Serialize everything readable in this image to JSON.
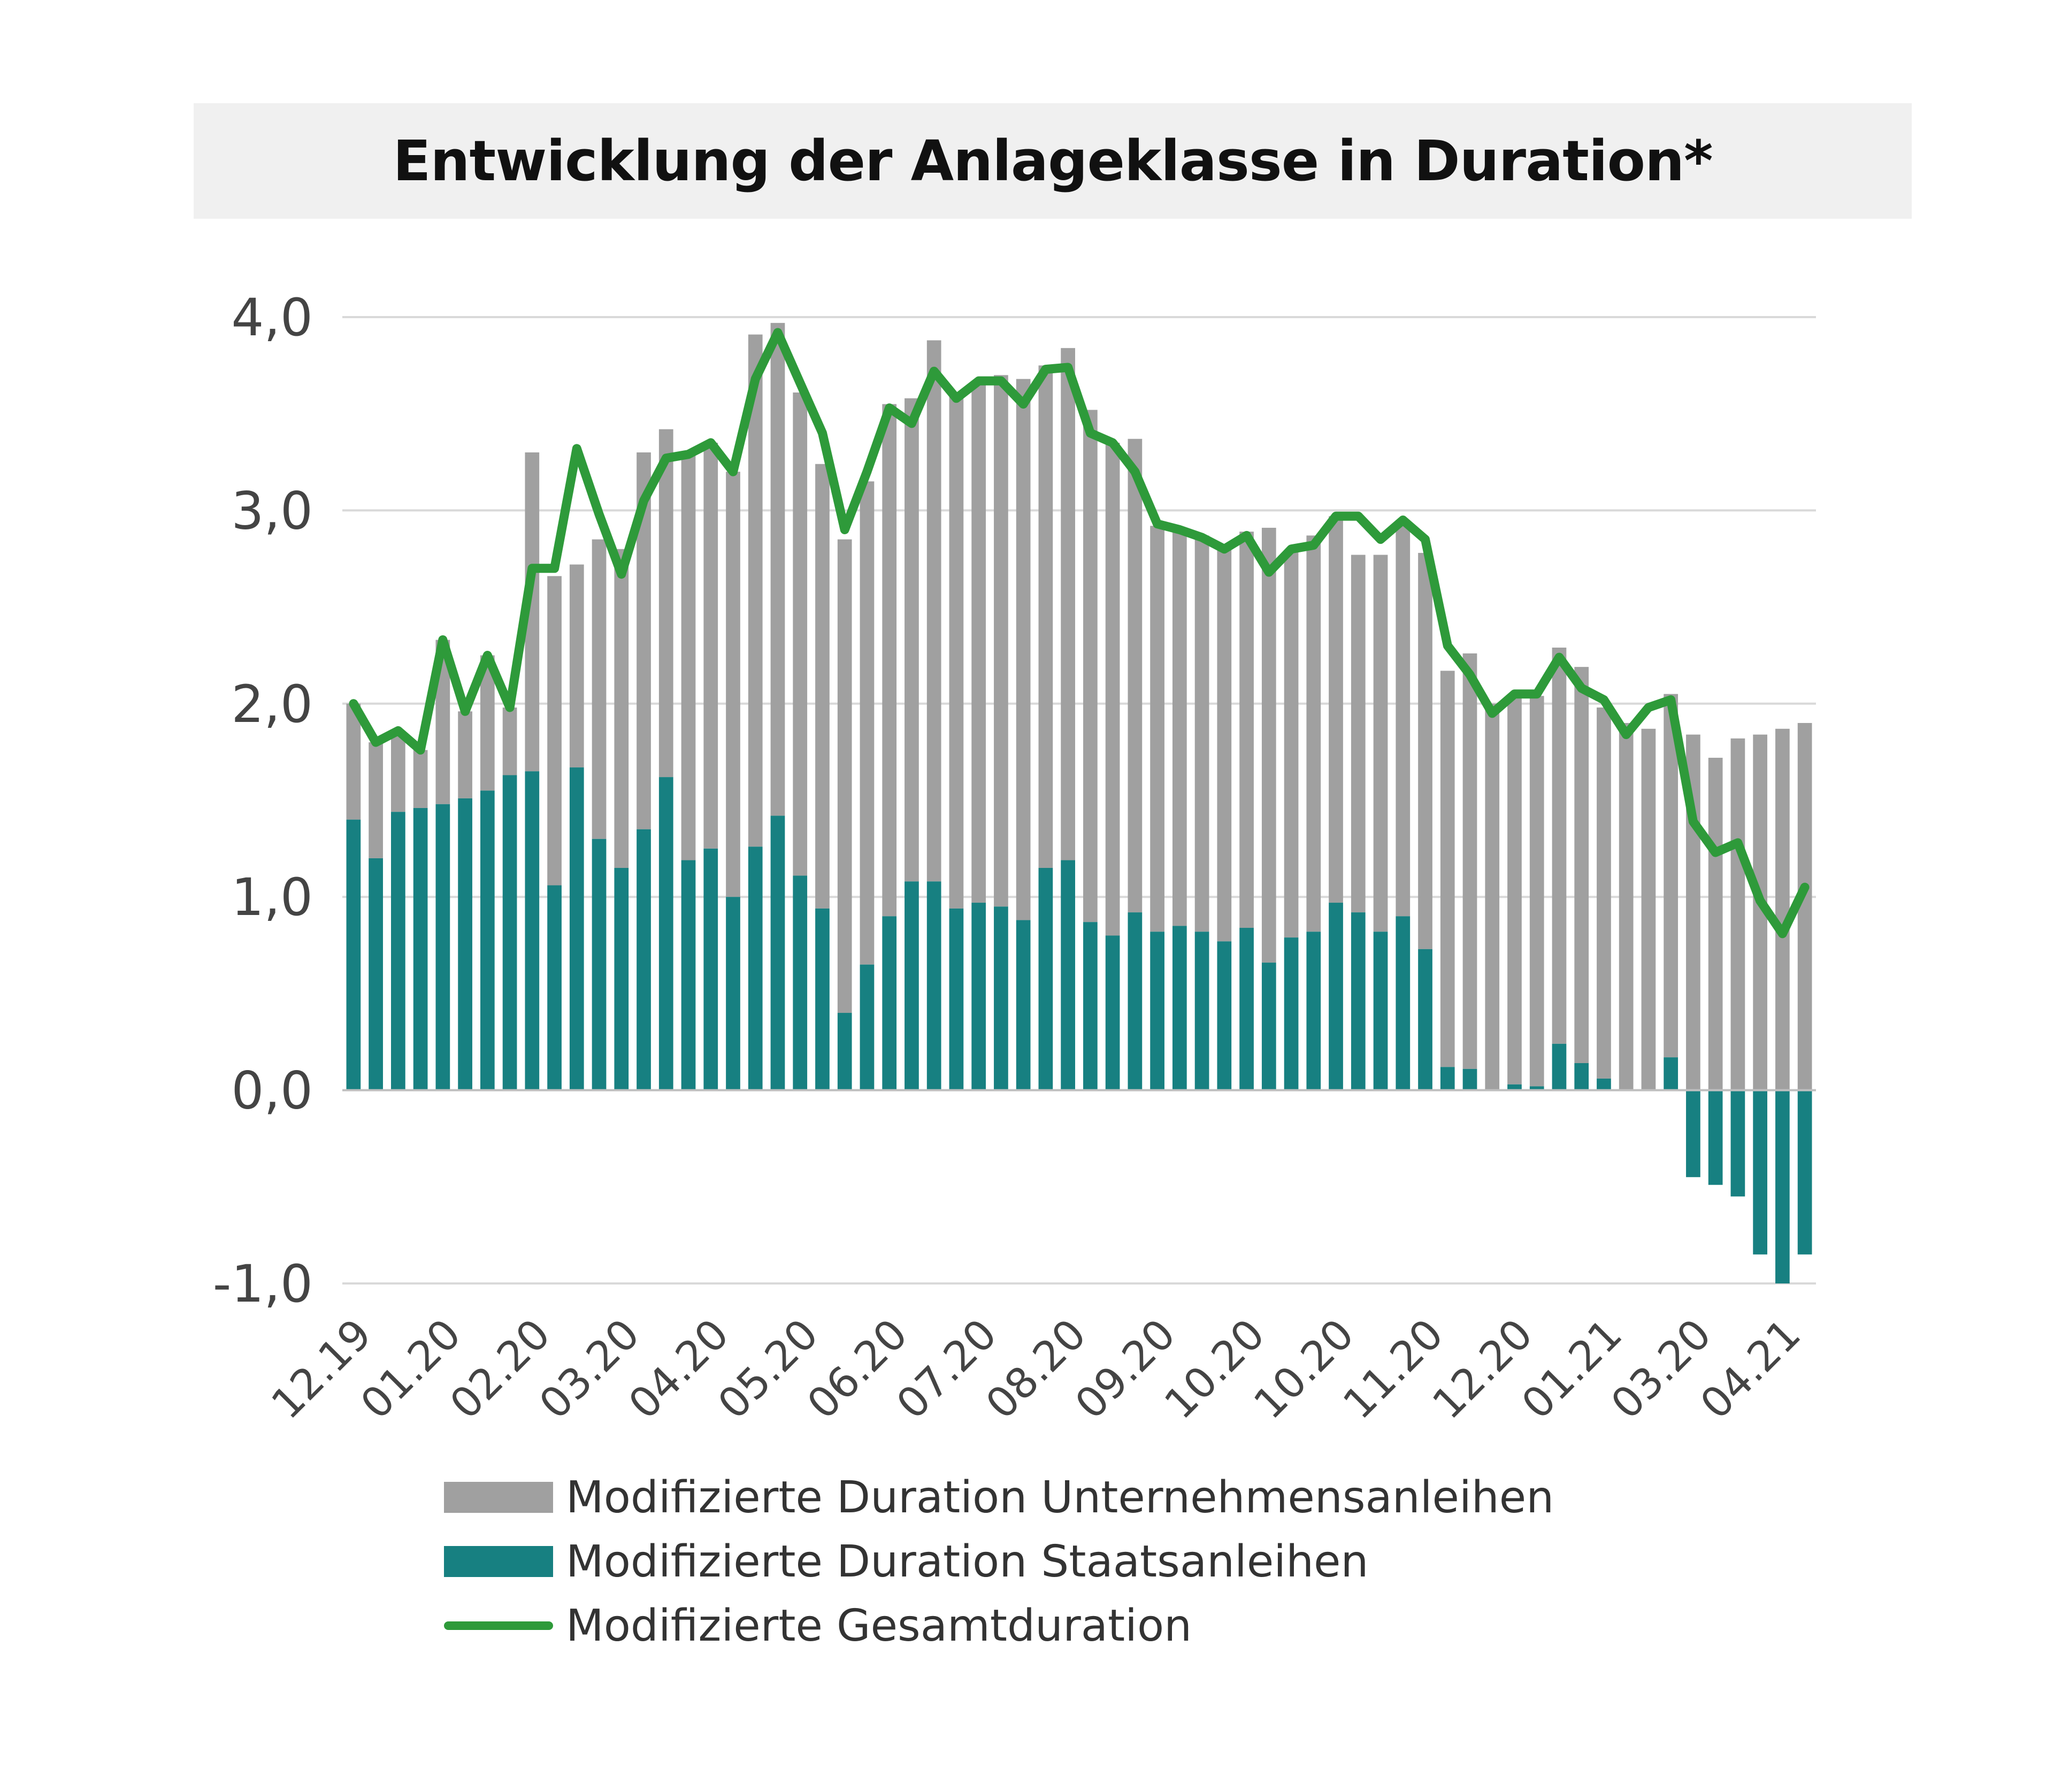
{
  "title": "Entwicklung der Anlageklasse in Duration*",
  "chart_data": {
    "type": "bar",
    "stacked": true,
    "ylim": [
      -1.0,
      4.0
    ],
    "yticks": [
      "4,0",
      "3,0",
      "2,0",
      "1,0",
      "0,0",
      "-1,0"
    ],
    "ytick_values": [
      4,
      3,
      2,
      1,
      0,
      -1
    ],
    "xtick_labels": [
      "12.19",
      "01.20",
      "02.20",
      "03.20",
      "04.20",
      "05.20",
      "06.20",
      "07.20",
      "08.20",
      "09.20",
      "10.20",
      "10.20",
      "11.20",
      "12.20",
      "01.21",
      "03.20",
      "04.21"
    ],
    "xtick_positions": [
      0,
      4,
      8,
      12,
      16,
      20,
      24,
      28,
      32,
      36,
      40,
      44,
      48,
      52,
      56,
      60,
      64
    ],
    "grid": true,
    "legend_position": "bottom",
    "series": [
      {
        "name": "Modifizierte Duration Unternehmensanleihen",
        "color": "#a0a0a0",
        "values": [
          0.6,
          0.6,
          0.42,
          0.3,
          0.85,
          0.45,
          0.7,
          0.35,
          1.65,
          1.6,
          1.05,
          1.55,
          1.65,
          1.95,
          1.8,
          2.1,
          2.1,
          2.2,
          2.65,
          2.55,
          2.5,
          2.3,
          2.45,
          2.5,
          2.65,
          2.5,
          2.8,
          2.65,
          2.7,
          2.75,
          2.8,
          2.6,
          2.65,
          2.65,
          2.55,
          2.45,
          2.1,
          2.05,
          2.05,
          2.05,
          2.05,
          2.25,
          2.0,
          2.05,
          2.0,
          1.85,
          1.95,
          2.05,
          2.05,
          2.05,
          2.15,
          2.0,
          2.02,
          2.02,
          2.05,
          2.05,
          1.92,
          1.9,
          1.87,
          1.88,
          1.84,
          1.72,
          1.82,
          1.84,
          1.87,
          1.9
        ]
      },
      {
        "name": "Modifizierte Duration Staatsanleihen",
        "color": "#178081",
        "values": [
          1.4,
          1.2,
          1.44,
          1.46,
          1.48,
          1.51,
          1.55,
          1.63,
          1.65,
          1.06,
          1.67,
          1.3,
          1.15,
          1.35,
          1.62,
          1.19,
          1.25,
          1.0,
          1.26,
          1.42,
          1.11,
          0.94,
          0.4,
          0.65,
          0.9,
          1.08,
          1.08,
          0.94,
          0.97,
          0.95,
          0.88,
          1.15,
          1.19,
          0.87,
          0.8,
          0.92,
          0.82,
          0.85,
          0.82,
          0.77,
          0.84,
          0.66,
          0.79,
          0.82,
          0.97,
          0.92,
          0.82,
          0.9,
          0.73,
          0.12,
          0.11,
          0.0,
          0.03,
          0.02,
          0.24,
          0.14,
          0.06,
          0.0,
          0.0,
          0.17,
          -0.45,
          -0.49,
          -0.55,
          -0.85,
          -1.0,
          -0.85
        ]
      },
      {
        "name": "Modifizierte Gesamtduration",
        "type": "line",
        "color": "#2e9a3a",
        "values": [
          2.0,
          1.8,
          1.86,
          1.76,
          2.33,
          1.96,
          2.25,
          1.98,
          2.7,
          2.7,
          3.32,
          2.98,
          2.67,
          3.05,
          3.27,
          3.29,
          3.35,
          3.2,
          3.68,
          3.92,
          3.66,
          3.4,
          2.9,
          3.2,
          3.53,
          3.45,
          3.72,
          3.58,
          3.67,
          3.67,
          3.55,
          3.73,
          3.74,
          3.4,
          3.35,
          3.2,
          2.93,
          2.9,
          2.86,
          2.8,
          2.87,
          2.68,
          2.8,
          2.82,
          2.97,
          2.97,
          2.85,
          2.95,
          2.85,
          2.3,
          2.15,
          1.95,
          2.05,
          2.05,
          2.24,
          2.08,
          2.02,
          1.84,
          1.98,
          2.02,
          1.39,
          1.23,
          1.28,
          0.98,
          0.81,
          1.05
        ]
      }
    ]
  },
  "legend": {
    "items": [
      {
        "label": "Modifizierte Duration Unternehmensanleihen",
        "color": "#a0a0a0",
        "kind": "bar"
      },
      {
        "label": "Modifizierte Duration Staatsanleihen",
        "color": "#178081",
        "kind": "bar"
      },
      {
        "label": "Modifizierte Gesamtduration",
        "color": "#2e9a3a",
        "kind": "line"
      }
    ]
  }
}
